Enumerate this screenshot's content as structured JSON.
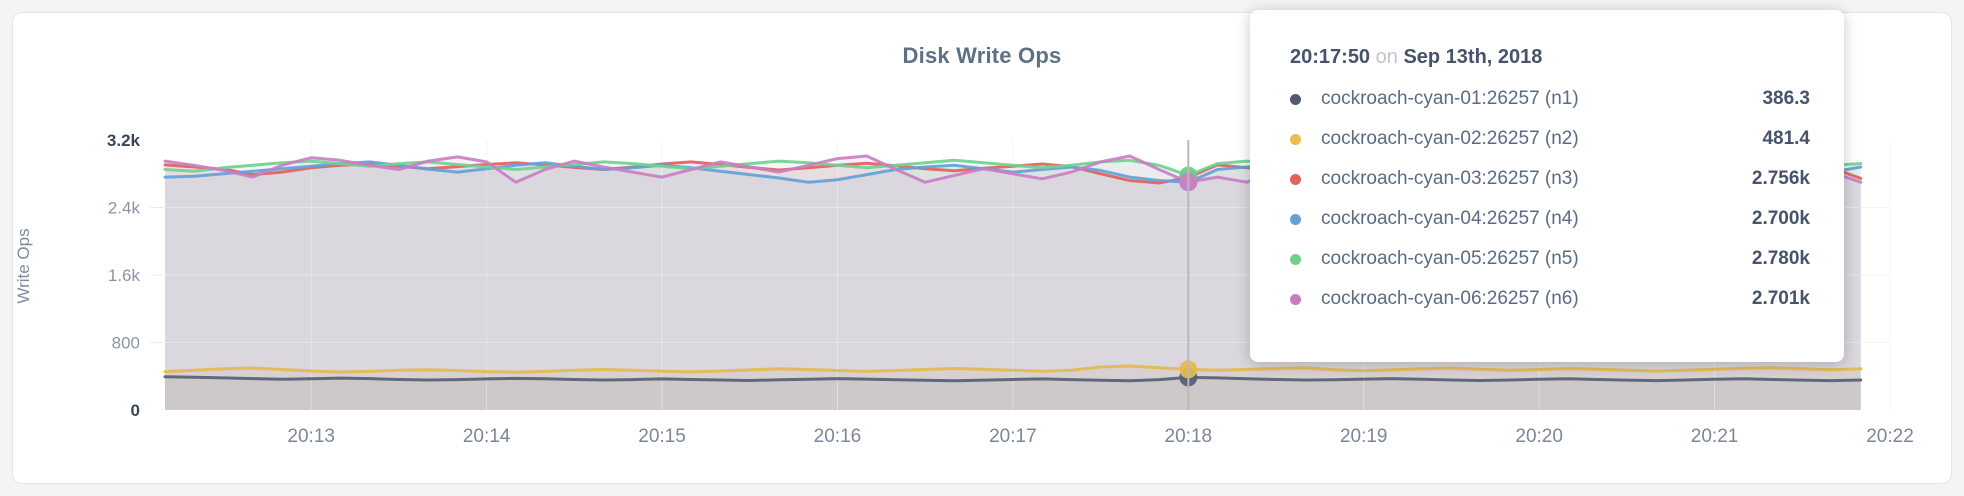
{
  "panel": {
    "title": "Disk Write Ops"
  },
  "palette": {
    "background": "#f4f4f5",
    "card_border": "#e3e4e7",
    "title_color": "#5e7184",
    "grid_under": "#ececec",
    "grid_over": "rgba(255,255,255,0.5)",
    "axis_tick_mid": "#8a93a6",
    "axis_tick_minmax": "#3b4559",
    "x_tick_color": "#7c8699",
    "axis_label_color": "#7e8aa0",
    "hover_line_color": "#b7b9bd"
  },
  "chart_data": {
    "type": "area",
    "title": "Disk Write Ops",
    "xlabel": "",
    "ylabel": "Write Ops",
    "ylim": [
      0,
      3200
    ],
    "x_domain_sec": [
      0,
      590
    ],
    "x_step_sec": 10,
    "grid": true,
    "legend_position": "tooltip",
    "y_ticks": [
      {
        "label": "0",
        "v": 0,
        "emph": true
      },
      {
        "label": "800",
        "v": 800,
        "emph": false
      },
      {
        "label": "1.6k",
        "v": 1600,
        "emph": false
      },
      {
        "label": "2.4k",
        "v": 2400,
        "emph": false
      },
      {
        "label": "3.2k",
        "v": 3200,
        "emph": true
      }
    ],
    "x_ticks": [
      {
        "label": "20:13",
        "t": 50
      },
      {
        "label": "20:14",
        "t": 110
      },
      {
        "label": "20:15",
        "t": 170
      },
      {
        "label": "20:16",
        "t": 230
      },
      {
        "label": "20:17",
        "t": 290
      },
      {
        "label": "20:18",
        "t": 350
      },
      {
        "label": "20:19",
        "t": 410
      },
      {
        "label": "20:20",
        "t": 470
      },
      {
        "label": "20:21",
        "t": 530
      },
      {
        "label": "20:22",
        "t": 590
      }
    ],
    "hover": {
      "index": 35,
      "time": "20:17:50"
    },
    "series": [
      {
        "name": "cockroach-cyan-01:26257 (n1)",
        "id": "n1",
        "color": "#566075",
        "values": [
          395,
          388,
          380,
          372,
          365,
          370,
          378,
          372,
          362,
          355,
          360,
          368,
          375,
          370,
          362,
          355,
          360,
          368,
          362,
          355,
          350,
          358,
          365,
          372,
          366,
          358,
          352,
          346,
          354,
          362,
          368,
          360,
          352,
          346,
          360,
          386.3,
          380,
          370,
          362,
          356,
          358,
          366,
          372,
          364,
          356,
          350,
          356,
          364,
          370,
          362,
          354,
          348,
          356,
          364,
          370,
          362,
          354,
          348,
          356
        ]
      },
      {
        "name": "cockroach-cyan-02:26257 (n2)",
        "id": "n2",
        "color": "#e5b94e",
        "values": [
          455,
          470,
          490,
          498,
          480,
          462,
          450,
          458,
          470,
          478,
          468,
          455,
          448,
          458,
          470,
          480,
          472,
          460,
          452,
          462,
          475,
          488,
          480,
          468,
          458,
          468,
          480,
          492,
          484,
          472,
          460,
          472,
          510,
          522,
          500,
          481.4,
          470,
          480,
          492,
          500,
          476,
          466,
          476,
          488,
          496,
          484,
          472,
          480,
          492,
          484,
          472,
          462,
          472,
          484,
          494,
          500,
          490,
          478,
          488
        ]
      },
      {
        "name": "cockroach-cyan-03:26257 (n3)",
        "id": "n3",
        "color": "#e0625b",
        "values": [
          2905,
          2880,
          2855,
          2790,
          2820,
          2870,
          2900,
          2915,
          2890,
          2860,
          2885,
          2910,
          2930,
          2905,
          2875,
          2850,
          2880,
          2915,
          2940,
          2910,
          2875,
          2845,
          2870,
          2900,
          2925,
          2895,
          2860,
          2835,
          2865,
          2890,
          2915,
          2885,
          2800,
          2720,
          2690,
          2756,
          2905,
          2870,
          2840,
          2815,
          2875,
          2900,
          2865,
          2830,
          2855,
          2885,
          2910,
          2880,
          2850,
          2820,
          2850,
          2880,
          2905,
          2875,
          2845,
          2815,
          2840,
          2870,
          2745
        ]
      },
      {
        "name": "cockroach-cyan-04:26257 (n4)",
        "id": "n4",
        "color": "#64a1d8",
        "values": [
          2760,
          2770,
          2800,
          2830,
          2860,
          2890,
          2920,
          2940,
          2900,
          2855,
          2820,
          2860,
          2900,
          2930,
          2890,
          2850,
          2870,
          2900,
          2870,
          2830,
          2790,
          2750,
          2700,
          2730,
          2790,
          2850,
          2880,
          2900,
          2860,
          2820,
          2850,
          2880,
          2840,
          2760,
          2720,
          2700,
          2850,
          2880,
          2910,
          2940,
          2850,
          2800,
          2840,
          2880,
          2910,
          2870,
          2830,
          2860,
          2890,
          2850,
          2810,
          2850,
          2890,
          2920,
          2950,
          2900,
          2860,
          2820,
          2880
        ]
      },
      {
        "name": "cockroach-cyan-05:26257 (n5)",
        "id": "n5",
        "color": "#6fd192",
        "values": [
          2850,
          2830,
          2870,
          2900,
          2930,
          2950,
          2920,
          2890,
          2920,
          2940,
          2910,
          2880,
          2850,
          2880,
          2910,
          2940,
          2920,
          2890,
          2860,
          2890,
          2920,
          2950,
          2930,
          2900,
          2870,
          2900,
          2930,
          2960,
          2930,
          2900,
          2870,
          2900,
          2940,
          2960,
          2900,
          2780,
          2920,
          2950,
          2920,
          2890,
          2890,
          2920,
          2950,
          2920,
          2880,
          2850,
          2880,
          2910,
          2940,
          2910,
          2880,
          2850,
          2880,
          2910,
          2940,
          2960,
          2930,
          2900,
          2920
        ]
      },
      {
        "name": "cockroach-cyan-06:26257 (n6)",
        "id": "n6",
        "color": "#cb7ec4",
        "values": [
          2950,
          2900,
          2840,
          2760,
          2900,
          2990,
          2960,
          2900,
          2850,
          2950,
          3000,
          2940,
          2700,
          2850,
          2950,
          2880,
          2820,
          2760,
          2850,
          2940,
          2880,
          2820,
          2900,
          2980,
          3010,
          2850,
          2700,
          2780,
          2860,
          2800,
          2740,
          2820,
          2940,
          3010,
          2850,
          2701,
          2760,
          2700,
          2850,
          2960,
          2800,
          2700,
          2760,
          2850,
          2700,
          2780,
          2900,
          3000,
          2850,
          2760,
          2700,
          2750,
          2850,
          2920,
          2800,
          2700,
          2760,
          2820,
          2700
        ]
      }
    ]
  },
  "tooltip": {
    "time": "20:17:50",
    "on": "on",
    "date": "Sep 13th, 2018",
    "rows": [
      {
        "label": "cockroach-cyan-01:26257 (n1)",
        "value": "386.3",
        "color": "#525a6e"
      },
      {
        "label": "cockroach-cyan-02:26257 (n2)",
        "value": "481.4",
        "color": "#eebc4a"
      },
      {
        "label": "cockroach-cyan-03:26257 (n3)",
        "value": "2.756k",
        "color": "#e2635c"
      },
      {
        "label": "cockroach-cyan-04:26257 (n4)",
        "value": "2.700k",
        "color": "#63a0d8"
      },
      {
        "label": "cockroach-cyan-05:26257 (n5)",
        "value": "2.780k",
        "color": "#6fd087"
      },
      {
        "label": "cockroach-cyan-06:26257 (n6)",
        "value": "2.701k",
        "color": "#cc79be"
      }
    ]
  }
}
